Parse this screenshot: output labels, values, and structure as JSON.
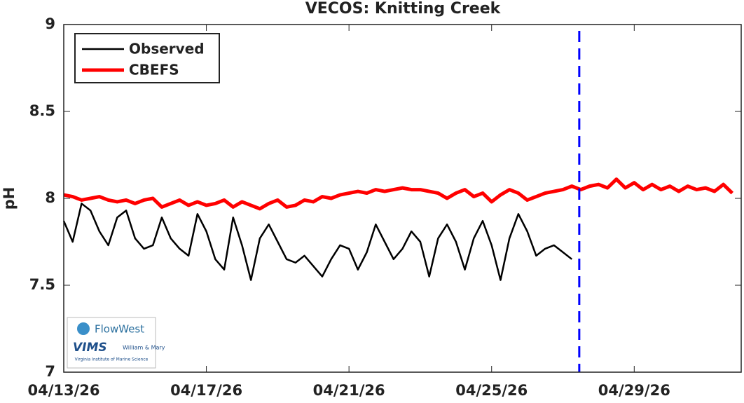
{
  "chart_data": {
    "type": "line",
    "title": "VECOS: Knitting Creek",
    "y_label": "pH",
    "x": [
      "2026-04-13T00:00",
      "2026-04-13T06:00",
      "2026-04-13T12:00",
      "2026-04-13T18:00",
      "2026-04-14T00:00",
      "2026-04-14T06:00",
      "2026-04-14T12:00",
      "2026-04-14T18:00",
      "2026-04-15T00:00",
      "2026-04-15T06:00",
      "2026-04-15T12:00",
      "2026-04-15T18:00",
      "2026-04-16T00:00",
      "2026-04-16T06:00",
      "2026-04-16T12:00",
      "2026-04-16T18:00",
      "2026-04-17T00:00",
      "2026-04-17T06:00",
      "2026-04-17T12:00",
      "2026-04-17T18:00",
      "2026-04-18T00:00",
      "2026-04-18T06:00",
      "2026-04-18T12:00",
      "2026-04-18T18:00",
      "2026-04-19T00:00",
      "2026-04-19T06:00",
      "2026-04-19T12:00",
      "2026-04-19T18:00",
      "2026-04-20T00:00",
      "2026-04-20T06:00",
      "2026-04-20T12:00",
      "2026-04-20T18:00",
      "2026-04-21T00:00",
      "2026-04-21T06:00",
      "2026-04-21T12:00",
      "2026-04-21T18:00",
      "2026-04-22T00:00",
      "2026-04-22T06:00",
      "2026-04-22T12:00",
      "2026-04-22T18:00",
      "2026-04-23T00:00",
      "2026-04-23T06:00",
      "2026-04-23T12:00",
      "2026-04-23T18:00",
      "2026-04-24T00:00",
      "2026-04-24T06:00",
      "2026-04-24T12:00",
      "2026-04-24T18:00",
      "2026-04-25T00:00",
      "2026-04-25T06:00",
      "2026-04-25T12:00",
      "2026-04-25T18:00",
      "2026-04-26T00:00",
      "2026-04-26T06:00",
      "2026-04-26T12:00",
      "2026-04-26T18:00",
      "2026-04-27T00:00",
      "2026-04-27T06:00",
      "2026-04-27T12:00",
      "2026-04-27T18:00",
      "2026-04-28T00:00",
      "2026-04-28T06:00",
      "2026-04-28T12:00",
      "2026-04-28T18:00",
      "2026-04-29T00:00",
      "2026-04-29T06:00",
      "2026-04-29T12:00",
      "2026-04-29T18:00",
      "2026-04-30T00:00",
      "2026-04-30T06:00",
      "2026-04-30T12:00",
      "2026-04-30T18:00",
      "2026-05-01T00:00",
      "2026-05-01T06:00",
      "2026-05-01T12:00",
      "2026-05-01T18:00"
    ],
    "series": [
      {
        "name": "Observed",
        "color": "#000000",
        "width": 2.5,
        "values": [
          7.87,
          7.75,
          7.97,
          7.93,
          7.81,
          7.73,
          7.89,
          7.93,
          7.77,
          7.71,
          7.73,
          7.89,
          7.77,
          7.71,
          7.67,
          7.91,
          7.81,
          7.65,
          7.59,
          7.89,
          7.73,
          7.53,
          7.77,
          7.85,
          7.75,
          7.65,
          7.63,
          7.67,
          7.61,
          7.55,
          7.65,
          7.73,
          7.71,
          7.59,
          7.69,
          7.85,
          7.75,
          7.65,
          7.71,
          7.81,
          7.75,
          7.55,
          7.77,
          7.85,
          7.75,
          7.59,
          7.77,
          7.87,
          7.73,
          7.53,
          7.77,
          7.91,
          7.81,
          7.67,
          7.71,
          7.73,
          7.69,
          7.65,
          null,
          null,
          null,
          null,
          null,
          null,
          null,
          null,
          null,
          null,
          null,
          null,
          null,
          null,
          null,
          null,
          null,
          null
        ]
      },
      {
        "name": "CBEFS",
        "color": "#ff0000",
        "width": 5,
        "values": [
          8.02,
          8.01,
          7.99,
          8.0,
          8.01,
          7.99,
          7.98,
          7.99,
          7.97,
          7.99,
          8.0,
          7.95,
          7.97,
          7.99,
          7.96,
          7.98,
          7.96,
          7.97,
          7.99,
          7.95,
          7.98,
          7.96,
          7.94,
          7.97,
          7.99,
          7.95,
          7.96,
          7.99,
          7.98,
          8.01,
          8.0,
          8.02,
          8.03,
          8.04,
          8.03,
          8.05,
          8.04,
          8.05,
          8.06,
          8.05,
          8.05,
          8.04,
          8.03,
          8.0,
          8.03,
          8.05,
          8.01,
          8.03,
          7.98,
          8.02,
          8.05,
          8.03,
          7.99,
          8.01,
          8.03,
          8.04,
          8.05,
          8.07,
          8.05,
          8.07,
          8.08,
          8.06,
          8.11,
          8.06,
          8.09,
          8.05,
          8.08,
          8.05,
          8.07,
          8.04,
          8.07,
          8.05,
          8.06,
          8.04,
          8.08,
          8.03
        ]
      }
    ],
    "xlim": [
      "2026-04-13T00:00",
      "2026-05-02T00:00"
    ],
    "xticks": [
      {
        "value": "2026-04-13T00:00",
        "label": "04/13/26"
      },
      {
        "value": "2026-04-17T00:00",
        "label": "04/17/26"
      },
      {
        "value": "2026-04-21T00:00",
        "label": "04/21/26"
      },
      {
        "value": "2026-04-25T00:00",
        "label": "04/25/26"
      },
      {
        "value": "2026-04-29T00:00",
        "label": "04/29/26"
      }
    ],
    "ylim": [
      7,
      9
    ],
    "yticks": [
      7,
      7.5,
      8,
      8.5,
      9
    ],
    "grid": false,
    "legend": "upper-left",
    "vline": {
      "x": "2026-04-27T11:00",
      "color": "#0000ff"
    },
    "logo": {
      "brand": "FlowWest",
      "institute": "VIMS",
      "university": "William & Mary",
      "tagline": "Virginia Institute of Marine Science"
    }
  }
}
